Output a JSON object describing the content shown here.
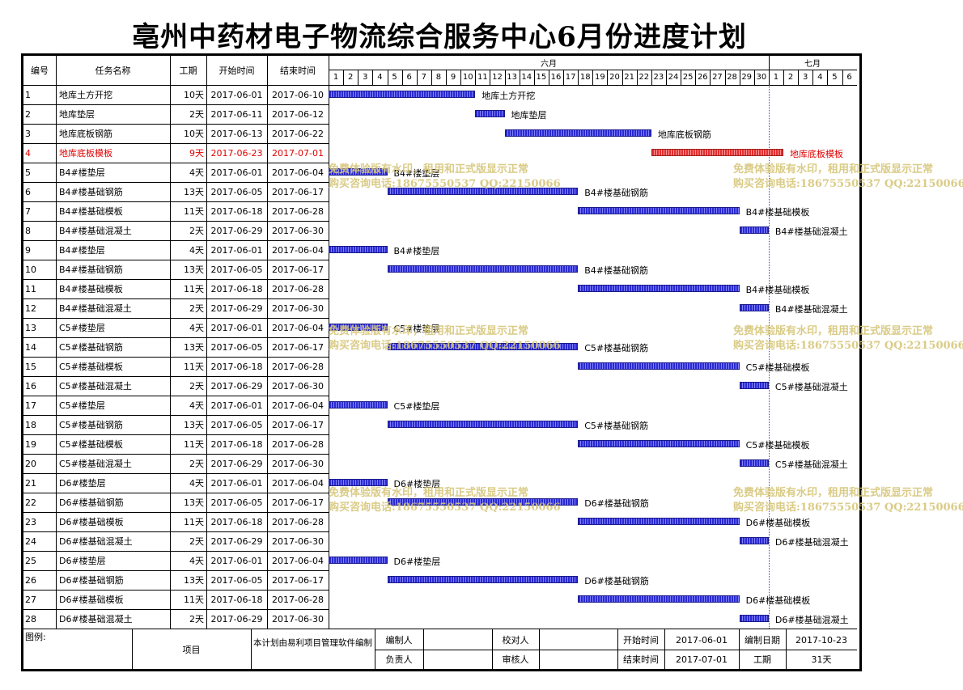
{
  "title": "亳州中药材电子物流综合服务中心6月份进度计划",
  "columns": {
    "id": "编号",
    "name": "任务名称",
    "duration": "工期",
    "start": "开始时间",
    "end": "结束时间"
  },
  "months": [
    "六月",
    "七月"
  ],
  "days": [
    "1",
    "2",
    "3",
    "4",
    "5",
    "6",
    "7",
    "8",
    "9",
    "10",
    "11",
    "12",
    "13",
    "14",
    "15",
    "16",
    "17",
    "18",
    "19",
    "20",
    "21",
    "22",
    "23",
    "24",
    "25",
    "26",
    "27",
    "28",
    "29",
    "30",
    "1",
    "2",
    "3",
    "4",
    "5",
    "6"
  ],
  "tasks": [
    {
      "id": "1",
      "name": "地库土方开挖",
      "duration": "10天",
      "start": "2017-06-01",
      "end": "2017-06-10",
      "s": 1,
      "e": 10,
      "critical": false
    },
    {
      "id": "2",
      "name": "地库垫层",
      "duration": "2天",
      "start": "2017-06-11",
      "end": "2017-06-12",
      "s": 11,
      "e": 12,
      "critical": false
    },
    {
      "id": "3",
      "name": "地库底板钢筋",
      "duration": "10天",
      "start": "2017-06-13",
      "end": "2017-06-22",
      "s": 13,
      "e": 22,
      "critical": false
    },
    {
      "id": "4",
      "name": "地库底板模板",
      "duration": "9天",
      "start": "2017-06-23",
      "end": "2017-07-01",
      "s": 23,
      "e": 31,
      "critical": true
    },
    {
      "id": "5",
      "name": "B4#楼垫层",
      "duration": "4天",
      "start": "2017-06-01",
      "end": "2017-06-04",
      "s": 1,
      "e": 4,
      "critical": false
    },
    {
      "id": "6",
      "name": "B4#楼基础钢筋",
      "duration": "13天",
      "start": "2017-06-05",
      "end": "2017-06-17",
      "s": 5,
      "e": 17,
      "critical": false
    },
    {
      "id": "7",
      "name": "B4#楼基础模板",
      "duration": "11天",
      "start": "2017-06-18",
      "end": "2017-06-28",
      "s": 18,
      "e": 28,
      "critical": false
    },
    {
      "id": "8",
      "name": "B4#楼基础混凝土",
      "duration": "2天",
      "start": "2017-06-29",
      "end": "2017-06-30",
      "s": 29,
      "e": 30,
      "critical": false
    },
    {
      "id": "9",
      "name": "B4#楼垫层",
      "duration": "4天",
      "start": "2017-06-01",
      "end": "2017-06-04",
      "s": 1,
      "e": 4,
      "critical": false
    },
    {
      "id": "10",
      "name": "B4#楼基础钢筋",
      "duration": "13天",
      "start": "2017-06-05",
      "end": "2017-06-17",
      "s": 5,
      "e": 17,
      "critical": false
    },
    {
      "id": "11",
      "name": "B4#楼基础模板",
      "duration": "11天",
      "start": "2017-06-18",
      "end": "2017-06-28",
      "s": 18,
      "e": 28,
      "critical": false
    },
    {
      "id": "12",
      "name": "B4#楼基础混凝土",
      "duration": "2天",
      "start": "2017-06-29",
      "end": "2017-06-30",
      "s": 29,
      "e": 30,
      "critical": false
    },
    {
      "id": "13",
      "name": "C5#楼垫层",
      "duration": "4天",
      "start": "2017-06-01",
      "end": "2017-06-04",
      "s": 1,
      "e": 4,
      "critical": false
    },
    {
      "id": "14",
      "name": "C5#楼基础钢筋",
      "duration": "13天",
      "start": "2017-06-05",
      "end": "2017-06-17",
      "s": 5,
      "e": 17,
      "critical": false
    },
    {
      "id": "15",
      "name": "C5#楼基础模板",
      "duration": "11天",
      "start": "2017-06-18",
      "end": "2017-06-28",
      "s": 18,
      "e": 28,
      "critical": false
    },
    {
      "id": "16",
      "name": "C5#楼基础混凝土",
      "duration": "2天",
      "start": "2017-06-29",
      "end": "2017-06-30",
      "s": 29,
      "e": 30,
      "critical": false
    },
    {
      "id": "17",
      "name": "C5#楼垫层",
      "duration": "4天",
      "start": "2017-06-01",
      "end": "2017-06-04",
      "s": 1,
      "e": 4,
      "critical": false
    },
    {
      "id": "18",
      "name": "C5#楼基础钢筋",
      "duration": "13天",
      "start": "2017-06-05",
      "end": "2017-06-17",
      "s": 5,
      "e": 17,
      "critical": false
    },
    {
      "id": "19",
      "name": "C5#楼基础模板",
      "duration": "11天",
      "start": "2017-06-18",
      "end": "2017-06-28",
      "s": 18,
      "e": 28,
      "critical": false
    },
    {
      "id": "20",
      "name": "C5#楼基础混凝土",
      "duration": "2天",
      "start": "2017-06-29",
      "end": "2017-06-30",
      "s": 29,
      "e": 30,
      "critical": false
    },
    {
      "id": "21",
      "name": "D6#楼垫层",
      "duration": "4天",
      "start": "2017-06-01",
      "end": "2017-06-04",
      "s": 1,
      "e": 4,
      "critical": false
    },
    {
      "id": "22",
      "name": "D6#楼基础钢筋",
      "duration": "13天",
      "start": "2017-06-05",
      "end": "2017-06-17",
      "s": 5,
      "e": 17,
      "critical": false
    },
    {
      "id": "23",
      "name": "D6#楼基础模板",
      "duration": "11天",
      "start": "2017-06-18",
      "end": "2017-06-28",
      "s": 18,
      "e": 28,
      "critical": false
    },
    {
      "id": "24",
      "name": "D6#楼基础混凝土",
      "duration": "2天",
      "start": "2017-06-29",
      "end": "2017-06-30",
      "s": 29,
      "e": 30,
      "critical": false
    },
    {
      "id": "25",
      "name": "D6#楼垫层",
      "duration": "4天",
      "start": "2017-06-01",
      "end": "2017-06-04",
      "s": 1,
      "e": 4,
      "critical": false
    },
    {
      "id": "26",
      "name": "D6#楼基础钢筋",
      "duration": "13天",
      "start": "2017-06-05",
      "end": "2017-06-17",
      "s": 5,
      "e": 17,
      "critical": false
    },
    {
      "id": "27",
      "name": "D6#楼基础模板",
      "duration": "11天",
      "start": "2017-06-18",
      "end": "2017-06-28",
      "s": 18,
      "e": 28,
      "critical": false
    },
    {
      "id": "28",
      "name": "D6#楼基础混凝土",
      "duration": "2天",
      "start": "2017-06-29",
      "end": "2017-06-30",
      "s": 29,
      "e": 30,
      "critical": false
    }
  ],
  "watermark": {
    "line1": "免费体验版有水印，租用和正式版显示正常",
    "line2": "购买咨询电话:18675550537 QQ:22150066"
  },
  "footer": {
    "legend_label": "图例:",
    "project_label": "项目",
    "note": "本计划由易利项目管理软件编制",
    "compiler_label": "编制人",
    "compiler_value": "",
    "checker_label": "校对人",
    "checker_value": "",
    "start_label": "开始时间",
    "start_value": "2017-06-01",
    "compile_date_label": "编制日期",
    "compile_date_value": "2017-10-23",
    "owner_label": "负责人",
    "owner_value": "",
    "reviewer_label": "审核人",
    "reviewer_value": "",
    "end_label": "结束时间",
    "end_value": "2017-07-01",
    "duration_label": "工期",
    "duration_value": "31天"
  },
  "colors": {
    "bar": "#2a2ad0",
    "critical": "#e03030",
    "critical_text": "#e00000",
    "watermark": "#d6c67a"
  }
}
